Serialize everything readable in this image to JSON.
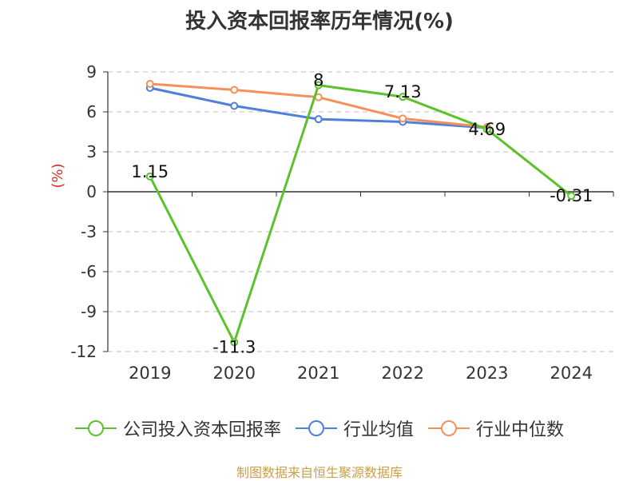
{
  "title": "投入资本回报率历年情况(%)",
  "source": "制图数据来自恒生聚源数据库",
  "chart_data": {
    "type": "line",
    "title": "投入资本回报率历年情况(%)",
    "ylabel": "(%)",
    "xlabel": "",
    "categories": [
      "2019",
      "2020",
      "2021",
      "2022",
      "2023",
      "2024"
    ],
    "ylim": [
      -12,
      9
    ],
    "yticks": [
      9,
      6,
      3,
      0,
      -3,
      -6,
      -9,
      -12
    ],
    "ytick_labels": [
      "9",
      "6",
      "3",
      "0",
      "-3",
      "-6",
      "-9",
      "-12"
    ],
    "grid": true,
    "legend_position": "bottom",
    "series": [
      {
        "name": "公司投入资本回报率",
        "color": "#5cc22b",
        "values": [
          1.15,
          -11.3,
          8,
          7.13,
          4.69,
          -0.31
        ],
        "data_labels": [
          "1.15",
          "-11.3",
          "8",
          "7.13",
          "4.69",
          "-0.31"
        ]
      },
      {
        "name": "行业均值",
        "color": "#4f7fd8",
        "values": [
          7.8,
          6.45,
          5.45,
          5.25,
          4.8,
          null
        ]
      },
      {
        "name": "行业中位数",
        "color": "#f5905a",
        "values": [
          8.1,
          7.65,
          7.1,
          5.5,
          4.85,
          null
        ]
      }
    ]
  }
}
